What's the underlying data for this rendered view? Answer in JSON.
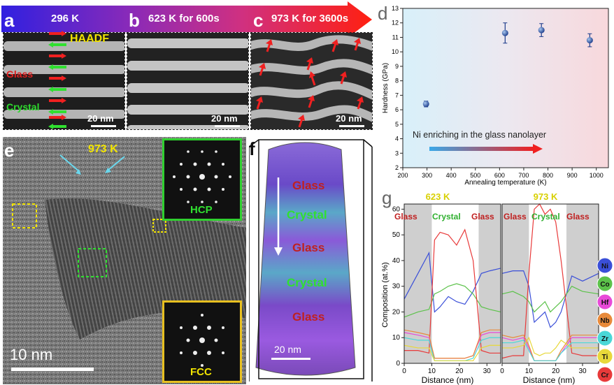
{
  "panel_a": {
    "letter": "a",
    "temp": "296 K",
    "mode": "HAADF",
    "label_glass": "Glass",
    "label_crystal": "Crystal",
    "scale": "20 nm"
  },
  "panel_b": {
    "letter": "b",
    "title": "623 K for 600s",
    "scale": "20 nm"
  },
  "panel_c": {
    "letter": "c",
    "title": "973 K for 3600s",
    "scale": "20 nm"
  },
  "panel_e": {
    "letter": "e",
    "temp": "973 K",
    "scale": "10 nm",
    "inset_top": "HCP",
    "inset_bottom": "FCC"
  },
  "panel_f": {
    "letter": "f",
    "layers": [
      "Glass",
      "Crystal",
      "Glass",
      "Crystal",
      "Glass"
    ],
    "scale": "20 nm"
  },
  "panel_d": {
    "letter": "d",
    "annotation": "Ni enriching in the glass nanolayer"
  },
  "panel_g": {
    "letter": "g",
    "left_temp": "623 K",
    "right_temp": "973 K",
    "region_labels": [
      "Glass",
      "Crystal",
      "Glass"
    ],
    "legend": [
      {
        "el": "Ni",
        "color": "#3a4fd8"
      },
      {
        "el": "Co",
        "color": "#5cc24a"
      },
      {
        "el": "Hf",
        "color": "#e84ad8"
      },
      {
        "el": "Nb",
        "color": "#e88a3a"
      },
      {
        "el": "Zr",
        "color": "#4ad8d8"
      },
      {
        "el": "Ti",
        "color": "#e8d83a"
      },
      {
        "el": "Cr",
        "color": "#e83a3a"
      }
    ]
  },
  "chart_data": [
    {
      "type": "scatter",
      "panel": "d",
      "xlabel": "Annealing temperature (K)",
      "ylabel": "Hardness (GPa)",
      "xlim": [
        200,
        1050
      ],
      "ylim": [
        2,
        13
      ],
      "x_ticks": [
        200,
        300,
        400,
        500,
        600,
        700,
        800,
        900,
        1000
      ],
      "y_ticks": [
        2,
        3,
        4,
        5,
        6,
        7,
        8,
        9,
        10,
        11,
        12,
        13
      ],
      "x": [
        296,
        623,
        773,
        973
      ],
      "y": [
        6.4,
        11.3,
        11.5,
        10.8
      ],
      "err": [
        0.2,
        0.7,
        0.45,
        0.45
      ]
    },
    {
      "type": "line",
      "panel": "g-left",
      "xlabel": "Distance (nm)",
      "ylabel": "Composition (at.%)",
      "xlim": [
        0,
        35
      ],
      "ylim": [
        0,
        62
      ],
      "x_ticks": [
        0,
        10,
        20,
        30
      ],
      "y_ticks": [
        0,
        10,
        20,
        30,
        40,
        50,
        60
      ],
      "x": [
        0,
        5,
        9,
        11,
        13,
        16,
        19,
        22,
        25,
        28,
        31,
        35
      ],
      "series": [
        {
          "name": "Ni",
          "values": [
            25,
            35,
            43,
            20,
            22,
            26,
            24,
            23,
            28,
            35,
            36,
            37
          ]
        },
        {
          "name": "Co",
          "values": [
            18,
            20,
            21,
            27,
            28,
            30,
            31,
            30,
            27,
            22,
            21,
            20
          ]
        },
        {
          "name": "Cr",
          "values": [
            5,
            5,
            4,
            48,
            51,
            50,
            46,
            52,
            40,
            5,
            4,
            4
          ]
        },
        {
          "name": "Hf",
          "values": [
            12,
            11,
            10,
            2,
            2,
            2,
            2,
            2,
            3,
            11,
            12,
            12
          ]
        },
        {
          "name": "Nb",
          "values": [
            13,
            12,
            11,
            2,
            2,
            2,
            2,
            2,
            3,
            12,
            13,
            13
          ]
        },
        {
          "name": "Zr",
          "values": [
            10,
            9,
            9,
            1,
            1,
            1,
            1,
            1,
            2,
            9,
            10,
            10
          ]
        },
        {
          "name": "Ti",
          "values": [
            7,
            6,
            6,
            1,
            1,
            1,
            1,
            1,
            1,
            6,
            7,
            7
          ]
        }
      ]
    },
    {
      "type": "line",
      "panel": "g-right",
      "xlabel": "Distance (nm)",
      "xlim": [
        0,
        36
      ],
      "ylim": [
        0,
        62
      ],
      "x_ticks": [
        0,
        10,
        20,
        30
      ],
      "x": [
        0,
        4,
        8,
        10,
        12,
        14,
        16,
        18,
        20,
        22,
        26,
        30,
        36
      ],
      "series": [
        {
          "name": "Ni",
          "values": [
            35,
            36,
            36,
            30,
            16,
            18,
            20,
            14,
            16,
            20,
            34,
            32,
            35
          ]
        },
        {
          "name": "Co",
          "values": [
            27,
            28,
            26,
            24,
            20,
            22,
            24,
            20,
            22,
            24,
            30,
            28,
            27
          ]
        },
        {
          "name": "Cr",
          "values": [
            2,
            3,
            3,
            35,
            60,
            62,
            58,
            60,
            55,
            40,
            4,
            3,
            3
          ]
        },
        {
          "name": "Hf",
          "values": [
            10,
            9,
            10,
            6,
            1,
            1,
            1,
            1,
            1,
            4,
            10,
            10,
            10
          ]
        },
        {
          "name": "Nb",
          "values": [
            11,
            10,
            11,
            7,
            1,
            1,
            1,
            1,
            1,
            5,
            11,
            11,
            11
          ]
        },
        {
          "name": "Zr",
          "values": [
            8,
            8,
            9,
            5,
            1,
            1,
            1,
            1,
            1,
            4,
            8,
            8,
            8
          ]
        },
        {
          "name": "Ti",
          "values": [
            6,
            6,
            7,
            10,
            4,
            3,
            4,
            4,
            6,
            9,
            6,
            6,
            6
          ]
        }
      ]
    }
  ]
}
